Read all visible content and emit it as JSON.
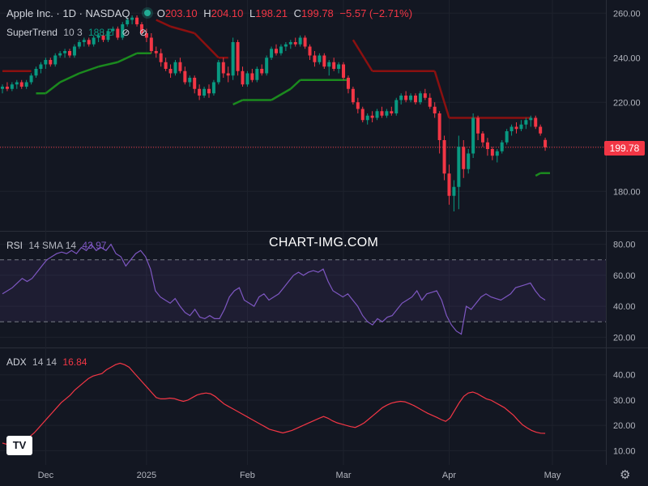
{
  "header": {
    "symbol": "Apple Inc. · 1D · NASDAQ",
    "open_label": "O",
    "open": "203.10",
    "high_label": "H",
    "high": "204.10",
    "low_label": "L",
    "low": "198.21",
    "close_label": "C",
    "close": "199.78",
    "change": "−5.57 (−2.71%)"
  },
  "supertrend_legend": {
    "name": "SuperTrend",
    "params": "10 3",
    "value": "188.2"
  },
  "rsi_legend": {
    "name": "RSI",
    "params": "14 SMA 14",
    "value": "43.97"
  },
  "adx_legend": {
    "name": "ADX",
    "params": "14 14",
    "value": "16.84"
  },
  "watermark": "CHART-IMG.COM",
  "last_price_label": "199.78",
  "logo_text": "TV",
  "icons": {
    "eye_off": "eye-off-icon",
    "settings": "gear-icon",
    "status": "market-status-dot"
  },
  "colors": {
    "up": "#089981",
    "down": "#f23645",
    "supertrend_up": "#1b8a1e",
    "supertrend_down": "#8b1010",
    "rsi": "#7e57c2",
    "adx": "#f23645",
    "background": "#131722"
  },
  "chart_data": [
    {
      "type": "candlestick",
      "title": "Apple Inc. · 1D · NASDAQ",
      "x_ticks": [
        "Dec",
        "2025",
        "Feb",
        "Mar",
        "Apr",
        "May"
      ],
      "y_ticks": [
        180,
        200,
        220,
        240,
        260
      ],
      "ylim": [
        167,
        263
      ],
      "last_price": 199.78,
      "candles": [
        {
          "o": 226,
          "h": 228,
          "l": 224,
          "c": 227
        },
        {
          "o": 227,
          "h": 229,
          "l": 225,
          "c": 226
        },
        {
          "o": 226,
          "h": 229,
          "l": 225,
          "c": 228
        },
        {
          "o": 228,
          "h": 230,
          "l": 226,
          "c": 229
        },
        {
          "o": 229,
          "h": 230,
          "l": 226,
          "c": 227
        },
        {
          "o": 227,
          "h": 230,
          "l": 226,
          "c": 229
        },
        {
          "o": 229,
          "h": 233,
          "l": 228,
          "c": 232
        },
        {
          "o": 232,
          "h": 236,
          "l": 231,
          "c": 235
        },
        {
          "o": 235,
          "h": 238,
          "l": 233,
          "c": 237
        },
        {
          "o": 237,
          "h": 240,
          "l": 235,
          "c": 239
        },
        {
          "o": 239,
          "h": 240,
          "l": 236,
          "c": 237
        },
        {
          "o": 237,
          "h": 242,
          "l": 236,
          "c": 241
        },
        {
          "o": 241,
          "h": 243,
          "l": 240,
          "c": 242
        },
        {
          "o": 242,
          "h": 244,
          "l": 240,
          "c": 243
        },
        {
          "o": 243,
          "h": 244,
          "l": 240,
          "c": 241
        },
        {
          "o": 241,
          "h": 246,
          "l": 240,
          "c": 245
        },
        {
          "o": 245,
          "h": 248,
          "l": 244,
          "c": 247
        },
        {
          "o": 247,
          "h": 249,
          "l": 245,
          "c": 248
        },
        {
          "o": 248,
          "h": 249,
          "l": 245,
          "c": 246
        },
        {
          "o": 246,
          "h": 250,
          "l": 245,
          "c": 249
        },
        {
          "o": 249,
          "h": 251,
          "l": 247,
          "c": 250
        },
        {
          "o": 250,
          "h": 252,
          "l": 247,
          "c": 248
        },
        {
          "o": 248,
          "h": 253,
          "l": 247,
          "c": 252
        },
        {
          "o": 252,
          "h": 254,
          "l": 250,
          "c": 253
        },
        {
          "o": 253,
          "h": 254,
          "l": 248,
          "c": 249
        },
        {
          "o": 249,
          "h": 256,
          "l": 248,
          "c": 255
        },
        {
          "o": 255,
          "h": 258,
          "l": 254,
          "c": 257
        },
        {
          "o": 257,
          "h": 259,
          "l": 255,
          "c": 258
        },
        {
          "o": 258,
          "h": 259,
          "l": 254,
          "c": 255
        },
        {
          "o": 255,
          "h": 256,
          "l": 250,
          "c": 251
        },
        {
          "o": 251,
          "h": 253,
          "l": 247,
          "c": 249
        },
        {
          "o": 249,
          "h": 251,
          "l": 242,
          "c": 243
        },
        {
          "o": 243,
          "h": 245,
          "l": 240,
          "c": 242
        },
        {
          "o": 242,
          "h": 244,
          "l": 236,
          "c": 238
        },
        {
          "o": 238,
          "h": 240,
          "l": 234,
          "c": 235
        },
        {
          "o": 235,
          "h": 237,
          "l": 231,
          "c": 233
        },
        {
          "o": 233,
          "h": 239,
          "l": 232,
          "c": 238
        },
        {
          "o": 238,
          "h": 240,
          "l": 233,
          "c": 234
        },
        {
          "o": 234,
          "h": 236,
          "l": 228,
          "c": 229
        },
        {
          "o": 229,
          "h": 232,
          "l": 227,
          "c": 231
        },
        {
          "o": 231,
          "h": 232,
          "l": 224,
          "c": 226
        },
        {
          "o": 226,
          "h": 228,
          "l": 221,
          "c": 223
        },
        {
          "o": 223,
          "h": 227,
          "l": 222,
          "c": 226
        },
        {
          "o": 226,
          "h": 228,
          "l": 222,
          "c": 224
        },
        {
          "o": 224,
          "h": 230,
          "l": 223,
          "c": 229
        },
        {
          "o": 229,
          "h": 239,
          "l": 228,
          "c": 238
        },
        {
          "o": 238,
          "h": 240,
          "l": 231,
          "c": 233
        },
        {
          "o": 233,
          "h": 236,
          "l": 229,
          "c": 232
        },
        {
          "o": 232,
          "h": 249,
          "l": 230,
          "c": 247
        },
        {
          "o": 247,
          "h": 248,
          "l": 232,
          "c": 234
        },
        {
          "o": 234,
          "h": 236,
          "l": 227,
          "c": 228
        },
        {
          "o": 228,
          "h": 234,
          "l": 227,
          "c": 233
        },
        {
          "o": 233,
          "h": 235,
          "l": 229,
          "c": 230
        },
        {
          "o": 230,
          "h": 236,
          "l": 229,
          "c": 235
        },
        {
          "o": 235,
          "h": 237,
          "l": 232,
          "c": 233
        },
        {
          "o": 233,
          "h": 241,
          "l": 232,
          "c": 240
        },
        {
          "o": 240,
          "h": 245,
          "l": 239,
          "c": 244
        },
        {
          "o": 244,
          "h": 246,
          "l": 241,
          "c": 242
        },
        {
          "o": 242,
          "h": 246,
          "l": 241,
          "c": 245
        },
        {
          "o": 245,
          "h": 247,
          "l": 243,
          "c": 246
        },
        {
          "o": 246,
          "h": 248,
          "l": 244,
          "c": 247
        },
        {
          "o": 247,
          "h": 249,
          "l": 245,
          "c": 246
        },
        {
          "o": 246,
          "h": 250,
          "l": 245,
          "c": 249
        },
        {
          "o": 249,
          "h": 250,
          "l": 244,
          "c": 245
        },
        {
          "o": 245,
          "h": 246,
          "l": 239,
          "c": 241
        },
        {
          "o": 241,
          "h": 243,
          "l": 236,
          "c": 238
        },
        {
          "o": 238,
          "h": 242,
          "l": 237,
          "c": 241
        },
        {
          "o": 241,
          "h": 242,
          "l": 235,
          "c": 236
        },
        {
          "o": 236,
          "h": 239,
          "l": 232,
          "c": 238
        },
        {
          "o": 238,
          "h": 240,
          "l": 234,
          "c": 235
        },
        {
          "o": 235,
          "h": 238,
          "l": 233,
          "c": 237
        },
        {
          "o": 237,
          "h": 238,
          "l": 230,
          "c": 231
        },
        {
          "o": 231,
          "h": 232,
          "l": 224,
          "c": 226
        },
        {
          "o": 226,
          "h": 227,
          "l": 219,
          "c": 220
        },
        {
          "o": 220,
          "h": 222,
          "l": 215,
          "c": 217
        },
        {
          "o": 217,
          "h": 218,
          "l": 211,
          "c": 212
        },
        {
          "o": 212,
          "h": 215,
          "l": 210,
          "c": 214
        },
        {
          "o": 214,
          "h": 216,
          "l": 211,
          "c": 213
        },
        {
          "o": 213,
          "h": 217,
          "l": 212,
          "c": 216
        },
        {
          "o": 216,
          "h": 218,
          "l": 213,
          "c": 214
        },
        {
          "o": 214,
          "h": 217,
          "l": 213,
          "c": 216
        },
        {
          "o": 216,
          "h": 218,
          "l": 214,
          "c": 215
        },
        {
          "o": 215,
          "h": 222,
          "l": 214,
          "c": 221
        },
        {
          "o": 221,
          "h": 224,
          "l": 219,
          "c": 223
        },
        {
          "o": 223,
          "h": 225,
          "l": 220,
          "c": 221
        },
        {
          "o": 221,
          "h": 224,
          "l": 220,
          "c": 223
        },
        {
          "o": 223,
          "h": 224,
          "l": 219,
          "c": 220
        },
        {
          "o": 220,
          "h": 225,
          "l": 219,
          "c": 224
        },
        {
          "o": 224,
          "h": 226,
          "l": 221,
          "c": 222
        },
        {
          "o": 222,
          "h": 224,
          "l": 217,
          "c": 218
        },
        {
          "o": 218,
          "h": 220,
          "l": 213,
          "c": 215
        },
        {
          "o": 215,
          "h": 216,
          "l": 197,
          "c": 203
        },
        {
          "o": 203,
          "h": 205,
          "l": 185,
          "c": 188
        },
        {
          "o": 188,
          "h": 192,
          "l": 174,
          "c": 178
        },
        {
          "o": 178,
          "h": 185,
          "l": 171,
          "c": 182
        },
        {
          "o": 182,
          "h": 205,
          "l": 172,
          "c": 200
        },
        {
          "o": 200,
          "h": 203,
          "l": 186,
          "c": 190
        },
        {
          "o": 190,
          "h": 199,
          "l": 188,
          "c": 197
        },
        {
          "o": 197,
          "h": 215,
          "l": 195,
          "c": 213
        },
        {
          "o": 213,
          "h": 214,
          "l": 203,
          "c": 206
        },
        {
          "o": 206,
          "h": 207,
          "l": 200,
          "c": 202
        },
        {
          "o": 202,
          "h": 204,
          "l": 196,
          "c": 199
        },
        {
          "o": 199,
          "h": 200,
          "l": 194,
          "c": 196
        },
        {
          "o": 196,
          "h": 199,
          "l": 193,
          "c": 198
        },
        {
          "o": 198,
          "h": 203,
          "l": 197,
          "c": 202
        },
        {
          "o": 202,
          "h": 208,
          "l": 201,
          "c": 207
        },
        {
          "o": 207,
          "h": 210,
          "l": 205,
          "c": 209
        },
        {
          "o": 209,
          "h": 211,
          "l": 206,
          "c": 208
        },
        {
          "o": 208,
          "h": 212,
          "l": 207,
          "c": 210
        },
        {
          "o": 210,
          "h": 213,
          "l": 208,
          "c": 212
        },
        {
          "o": 212,
          "h": 214,
          "l": 209,
          "c": 213
        },
        {
          "o": 213,
          "h": 214,
          "l": 208,
          "c": 209
        },
        {
          "o": 209,
          "h": 210,
          "l": 205,
          "c": 206
        },
        {
          "o": 203.1,
          "h": 204.1,
          "l": 198.21,
          "c": 199.78
        }
      ],
      "supertrend": [
        {
          "i": 0,
          "v": 234,
          "dir": "down"
        },
        {
          "i": 6,
          "v": 234,
          "dir": "down"
        },
        {
          "i": 7,
          "v": 224,
          "dir": "up"
        },
        {
          "i": 9,
          "v": 224,
          "dir": "up"
        },
        {
          "i": 12,
          "v": 229,
          "dir": "up"
        },
        {
          "i": 16,
          "v": 233,
          "dir": "up"
        },
        {
          "i": 20,
          "v": 236,
          "dir": "up"
        },
        {
          "i": 24,
          "v": 238,
          "dir": "up"
        },
        {
          "i": 28,
          "v": 242,
          "dir": "up"
        },
        {
          "i": 31,
          "v": 242,
          "dir": "up"
        },
        {
          "i": 32,
          "v": 257,
          "dir": "down"
        },
        {
          "i": 35,
          "v": 254,
          "dir": "down"
        },
        {
          "i": 40,
          "v": 251,
          "dir": "down"
        },
        {
          "i": 45,
          "v": 240,
          "dir": "down"
        },
        {
          "i": 47,
          "v": 240,
          "dir": "down"
        },
        {
          "i": 48,
          "v": 219,
          "dir": "up"
        },
        {
          "i": 50,
          "v": 221,
          "dir": "up"
        },
        {
          "i": 56,
          "v": 221,
          "dir": "up"
        },
        {
          "i": 60,
          "v": 226,
          "dir": "up"
        },
        {
          "i": 62,
          "v": 230,
          "dir": "up"
        },
        {
          "i": 72,
          "v": 230,
          "dir": "up"
        },
        {
          "i": 73,
          "v": 248,
          "dir": "down"
        },
        {
          "i": 77,
          "v": 234,
          "dir": "down"
        },
        {
          "i": 90,
          "v": 234,
          "dir": "down"
        },
        {
          "i": 93,
          "v": 213,
          "dir": "down"
        },
        {
          "i": 110,
          "v": 213,
          "dir": "down"
        },
        {
          "i": 111,
          "v": 187,
          "dir": "up"
        },
        {
          "i": 112,
          "v": 188.2,
          "dir": "up"
        },
        {
          "i": 114,
          "v": 188.2,
          "dir": "up"
        }
      ]
    },
    {
      "type": "line",
      "title": "RSI 14 SMA 14",
      "y_ticks": [
        20,
        40,
        60,
        80
      ],
      "ylim": [
        16,
        84
      ],
      "bands": [
        30,
        70
      ],
      "last_value": 43.97,
      "values": [
        48,
        50,
        52,
        55,
        58,
        56,
        58,
        62,
        66,
        70,
        72,
        74,
        75,
        74,
        76,
        74,
        78,
        76,
        80,
        76,
        78,
        76,
        80,
        74,
        72,
        66,
        70,
        74,
        76,
        72,
        64,
        50,
        46,
        44,
        42,
        45,
        40,
        36,
        34,
        38,
        33,
        32,
        34,
        32,
        32,
        38,
        46,
        50,
        52,
        44,
        42,
        40,
        46,
        48,
        44,
        46,
        48,
        52,
        56,
        60,
        62,
        60,
        62,
        63,
        62,
        64,
        56,
        50,
        48,
        46,
        48,
        44,
        40,
        34,
        30,
        28,
        32,
        30,
        33,
        34,
        38,
        42,
        44,
        46,
        50,
        44,
        48,
        49,
        50,
        44,
        34,
        28,
        24,
        22,
        40,
        38,
        42,
        46,
        48,
        46,
        45,
        44,
        46,
        48,
        52,
        53,
        54,
        55,
        50,
        46,
        44
      ]
    },
    {
      "type": "line",
      "title": "ADX 14 14",
      "y_ticks": [
        10,
        20,
        30,
        40
      ],
      "ylim": [
        5,
        46
      ],
      "last_value": 16.84,
      "values": [
        13,
        12.5,
        12,
        12.3,
        13,
        14,
        15.5,
        17,
        19,
        21,
        23,
        25,
        27,
        29,
        30.5,
        32,
        34,
        35.5,
        37,
        38.5,
        39.5,
        40,
        40.5,
        42,
        43,
        44,
        44.6,
        44,
        43,
        41,
        39,
        37,
        35,
        33,
        31,
        30.5,
        30.5,
        30.8,
        30.6,
        30,
        29.5,
        30,
        31,
        32,
        32.5,
        32.8,
        32.5,
        31.5,
        30,
        28.5,
        27.5,
        26.5,
        25.5,
        24.5,
        23.5,
        22.5,
        21.5,
        20.5,
        19.5,
        18.5,
        18,
        17.5,
        17,
        17.5,
        18,
        18.8,
        19.6,
        20.4,
        21.2,
        22,
        22.8,
        23.5,
        22.8,
        21.8,
        21,
        20.5,
        20,
        19.5,
        19.2,
        20,
        21,
        22.5,
        24,
        25.5,
        27,
        28,
        28.8,
        29.2,
        29.5,
        29.3,
        28.6,
        27.8,
        26.8,
        25.8,
        24.8,
        24,
        23.2,
        22.3,
        21.6,
        23,
        26,
        29,
        31.5,
        32.8,
        33.2,
        32.5,
        31.5,
        30.5,
        30,
        29,
        28,
        27,
        25.5,
        24,
        22,
        20.2,
        19,
        18,
        17.3,
        16.9,
        16.84
      ]
    }
  ]
}
